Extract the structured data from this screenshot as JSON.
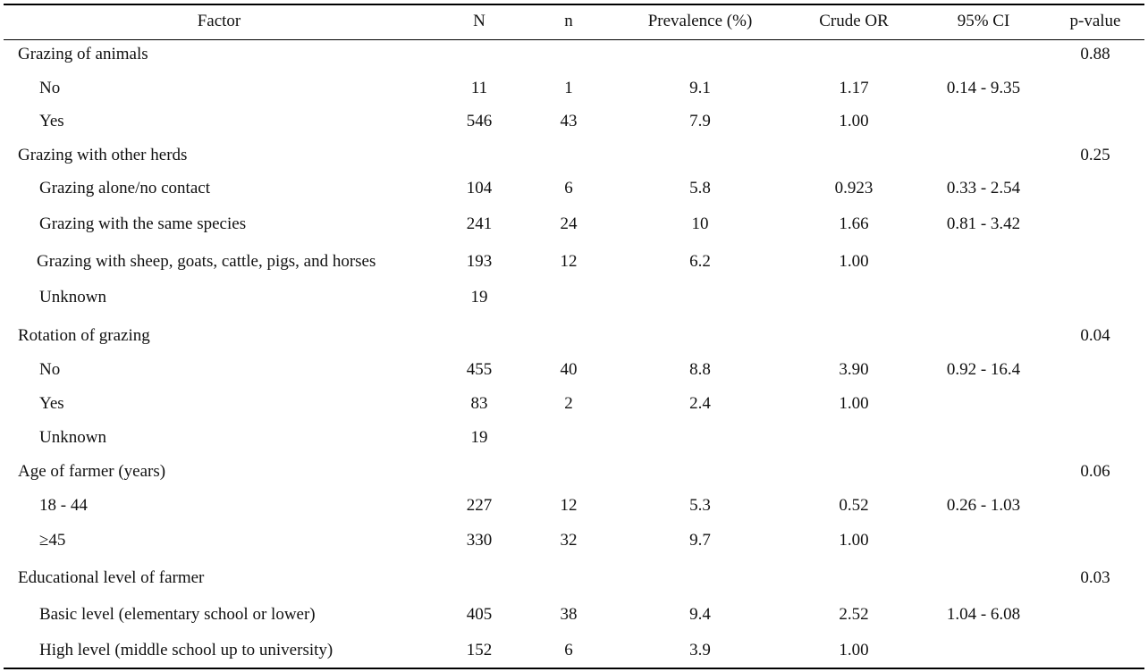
{
  "table": {
    "headers": {
      "factor": "Factor",
      "N": "N",
      "n": "n",
      "prevalence": "Prevalence (%)",
      "crude_or": "Crude OR",
      "ci": "95% CI",
      "p_value": "p-value"
    },
    "rows": [
      {
        "factor": "Grazing of animals",
        "N": "",
        "n": "",
        "prevalence": "",
        "crude_or": "",
        "ci": "",
        "p_value": "0.88"
      },
      {
        "factor": "No",
        "N": "11",
        "n": "1",
        "prevalence": "9.1",
        "crude_or": "1.17",
        "ci": "0.14 - 9.35",
        "p_value": ""
      },
      {
        "factor": "Yes",
        "N": "546",
        "n": "43",
        "prevalence": "7.9",
        "crude_or": "1.00",
        "ci": "",
        "p_value": ""
      },
      {
        "factor": "Grazing with other herds",
        "N": "",
        "n": "",
        "prevalence": "",
        "crude_or": "",
        "ci": "",
        "p_value": "0.25"
      },
      {
        "factor": "Grazing alone/no contact",
        "N": "104",
        "n": "6",
        "prevalence": "5.8",
        "crude_or": "0.923",
        "ci": "0.33 - 2.54",
        "p_value": ""
      },
      {
        "factor": "Grazing with the same species",
        "N": "241",
        "n": "24",
        "prevalence": "10",
        "crude_or": "1.66",
        "ci": "0.81 - 3.42",
        "p_value": ""
      },
      {
        "factor": "Grazing with sheep, goats, cattle, pigs, and horses",
        "N": "193",
        "n": "12",
        "prevalence": "6.2",
        "crude_or": "1.00",
        "ci": "",
        "p_value": ""
      },
      {
        "factor": "Unknown",
        "N": "19",
        "n": "",
        "prevalence": "",
        "crude_or": "",
        "ci": "",
        "p_value": ""
      },
      {
        "factor": "Rotation of grazing",
        "N": "",
        "n": "",
        "prevalence": "",
        "crude_or": "",
        "ci": "",
        "p_value": "0.04"
      },
      {
        "factor": "No",
        "N": "455",
        "n": "40",
        "prevalence": "8.8",
        "crude_or": "3.90",
        "ci": "0.92 - 16.4",
        "p_value": ""
      },
      {
        "factor": "Yes",
        "N": "83",
        "n": "2",
        "prevalence": "2.4",
        "crude_or": "1.00",
        "ci": "",
        "p_value": ""
      },
      {
        "factor": "Unknown",
        "N": "19",
        "n": "",
        "prevalence": "",
        "crude_or": "",
        "ci": "",
        "p_value": ""
      },
      {
        "factor": "Age of farmer (years)",
        "N": "",
        "n": "",
        "prevalence": "",
        "crude_or": "",
        "ci": "",
        "p_value": "0.06"
      },
      {
        "factor": "18 - 44",
        "N": "227",
        "n": "12",
        "prevalence": "5.3",
        "crude_or": "0.52",
        "ci": "0.26 - 1.03",
        "p_value": ""
      },
      {
        "factor": "≥45",
        "N": "330",
        "n": "32",
        "prevalence": "9.7",
        "crude_or": "1.00",
        "ci": "",
        "p_value": ""
      },
      {
        "factor": "Educational level of farmer",
        "N": "",
        "n": "",
        "prevalence": "",
        "crude_or": "",
        "ci": "",
        "p_value": "0.03"
      },
      {
        "factor": "Basic level (elementary school or lower)",
        "N": "405",
        "n": "38",
        "prevalence": "9.4",
        "crude_or": "2.52",
        "ci": "1.04 - 6.08",
        "p_value": ""
      },
      {
        "factor": "High level (middle school up to university)",
        "N": "152",
        "n": "6",
        "prevalence": "3.9",
        "crude_or": "1.00",
        "ci": "",
        "p_value": ""
      }
    ]
  }
}
